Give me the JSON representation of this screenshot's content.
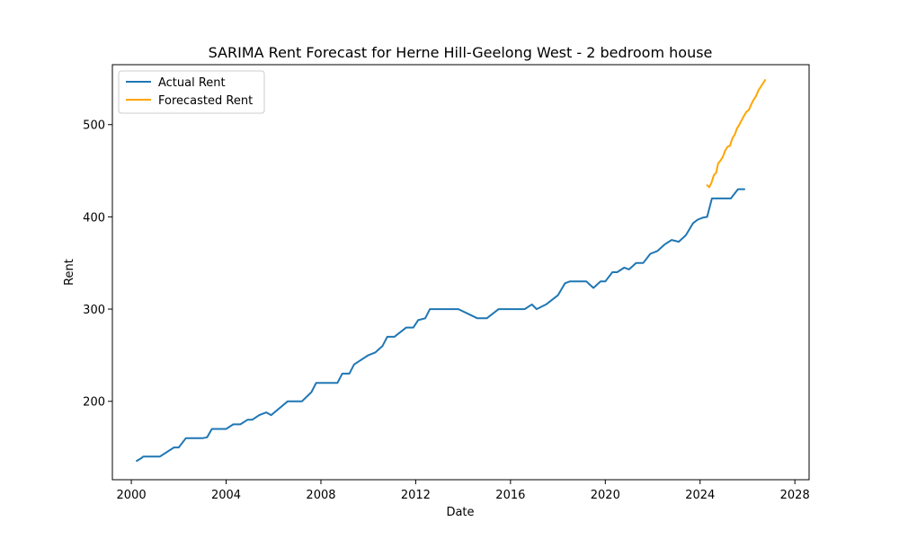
{
  "chart_data": {
    "type": "line",
    "title": "SARIMA Rent Forecast for Herne Hill-Geelong West - 2 bedroom house",
    "xlabel": "Date",
    "ylabel": "Rent",
    "xlim": [
      1999.2,
      2028.6
    ],
    "ylim": [
      115,
      565
    ],
    "x_ticks": [
      2000,
      2004,
      2008,
      2012,
      2016,
      2020,
      2024,
      2028
    ],
    "y_ticks": [
      200,
      300,
      400,
      500
    ],
    "grid": false,
    "legend": "top-left",
    "series": [
      {
        "name": "Actual Rent",
        "color": "#1f77b4",
        "points": [
          [
            2000.2,
            135
          ],
          [
            2000.4,
            138
          ],
          [
            2000.5,
            140
          ],
          [
            2001.2,
            140
          ],
          [
            2001.8,
            150
          ],
          [
            2002.0,
            150
          ],
          [
            2002.3,
            160
          ],
          [
            2003.0,
            160
          ],
          [
            2003.2,
            161
          ],
          [
            2003.4,
            170
          ],
          [
            2004.0,
            170
          ],
          [
            2004.3,
            175
          ],
          [
            2004.6,
            175
          ],
          [
            2004.9,
            180
          ],
          [
            2005.1,
            180
          ],
          [
            2005.4,
            185
          ],
          [
            2005.7,
            188
          ],
          [
            2005.9,
            185
          ],
          [
            2006.6,
            200
          ],
          [
            2007.0,
            200
          ],
          [
            2007.2,
            200
          ],
          [
            2007.6,
            210
          ],
          [
            2007.8,
            220
          ],
          [
            2008.0,
            220
          ],
          [
            2008.5,
            220
          ],
          [
            2008.7,
            220
          ],
          [
            2008.9,
            230
          ],
          [
            2009.2,
            230
          ],
          [
            2009.4,
            240
          ],
          [
            2010.0,
            250
          ],
          [
            2010.3,
            253
          ],
          [
            2010.6,
            260
          ],
          [
            2010.8,
            270
          ],
          [
            2011.1,
            270
          ],
          [
            2011.6,
            280
          ],
          [
            2011.9,
            280
          ],
          [
            2012.1,
            288
          ],
          [
            2012.4,
            290
          ],
          [
            2012.6,
            300
          ],
          [
            2013.0,
            300
          ],
          [
            2013.5,
            300
          ],
          [
            2013.8,
            300
          ],
          [
            2014.2,
            295
          ],
          [
            2014.6,
            290
          ],
          [
            2015.0,
            290
          ],
          [
            2015.5,
            300
          ],
          [
            2015.8,
            300
          ],
          [
            2016.4,
            300
          ],
          [
            2016.6,
            300
          ],
          [
            2016.9,
            305
          ],
          [
            2017.1,
            300
          ],
          [
            2017.5,
            305
          ],
          [
            2018.0,
            315
          ],
          [
            2018.3,
            328
          ],
          [
            2018.5,
            330
          ],
          [
            2019.0,
            330
          ],
          [
            2019.2,
            330
          ],
          [
            2019.5,
            323
          ],
          [
            2019.8,
            330
          ],
          [
            2020.0,
            330
          ],
          [
            2020.3,
            340
          ],
          [
            2020.5,
            340
          ],
          [
            2020.8,
            345
          ],
          [
            2021.0,
            343
          ],
          [
            2021.3,
            350
          ],
          [
            2021.6,
            350
          ],
          [
            2021.9,
            360
          ],
          [
            2022.2,
            363
          ],
          [
            2022.5,
            370
          ],
          [
            2022.8,
            375
          ],
          [
            2023.1,
            373
          ],
          [
            2023.4,
            380
          ],
          [
            2023.7,
            393
          ],
          [
            2023.9,
            397
          ],
          [
            2024.1,
            399
          ],
          [
            2024.3,
            400
          ],
          [
            2024.5,
            420
          ],
          [
            2024.7,
            420
          ],
          [
            2025.0,
            420
          ],
          [
            2025.3,
            420
          ],
          [
            2025.6,
            430
          ],
          [
            2025.8,
            430
          ],
          [
            2025.9,
            430
          ]
        ]
      },
      {
        "name": "Forecasted Rent",
        "color": "#ffa500",
        "points": [
          [
            2024.28,
            435
          ],
          [
            2024.38,
            432
          ],
          [
            2024.48,
            437
          ],
          [
            2024.58,
            445
          ],
          [
            2024.68,
            448
          ],
          [
            2024.76,
            458
          ],
          [
            2024.86,
            461
          ],
          [
            2024.96,
            465
          ],
          [
            2025.06,
            472
          ],
          [
            2025.16,
            476
          ],
          [
            2025.26,
            477
          ],
          [
            2025.36,
            485
          ],
          [
            2025.46,
            489
          ],
          [
            2025.56,
            496
          ],
          [
            2025.66,
            500
          ],
          [
            2025.76,
            505
          ],
          [
            2025.86,
            510
          ],
          [
            2025.96,
            514
          ],
          [
            2026.06,
            516
          ],
          [
            2026.16,
            522
          ],
          [
            2026.26,
            527
          ],
          [
            2026.36,
            531
          ],
          [
            2026.46,
            537
          ],
          [
            2026.56,
            541
          ],
          [
            2026.66,
            545
          ],
          [
            2026.76,
            549
          ]
        ]
      }
    ]
  }
}
